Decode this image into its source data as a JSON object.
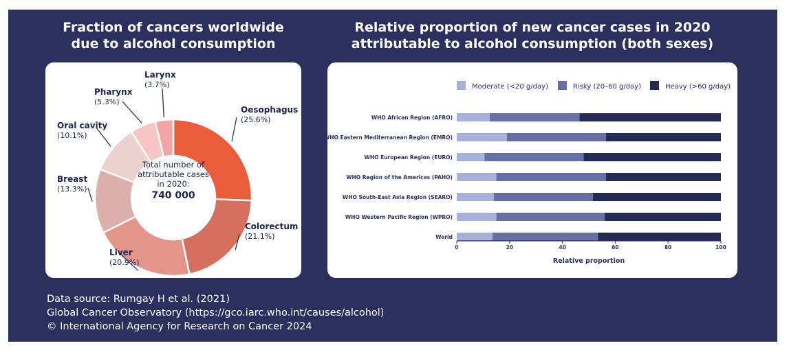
{
  "left_title": [
    "Fraction of cancers worldwide",
    "due to alcohol consumption"
  ],
  "right_title": [
    "Relative proportion of new cancer cases in 2020",
    "attributable to alcohol consumption (both sexes)"
  ],
  "source_lines": [
    "Data source: Rumgay H et al. (2021)",
    "Global Cancer Observatory (https://gco.iarc.who.int/causes/alcohol)",
    "© International Agency for Research on Cancer 2024"
  ],
  "colors": {
    "background": "#2c2f5e",
    "moderate": "#a7b0d8",
    "risky": "#666ea6",
    "heavy": "#252a54"
  },
  "chart_data": [
    {
      "type": "pie",
      "title": "Fraction of cancers worldwide due to alcohol consumption",
      "center_text": [
        "Total number of",
        "attributable cases",
        "in 2020:"
      ],
      "center_value": "740 000",
      "slices": [
        {
          "name": "Oesophagus",
          "label": "(25.6%)",
          "value": 25.6,
          "color": "#e95c3c"
        },
        {
          "name": "Colorectum",
          "label": "(21.1%)",
          "value": 21.1,
          "color": "#d5705f"
        },
        {
          "name": "Liver",
          "label": "(20.9%)",
          "value": 20.9,
          "color": "#e4958a"
        },
        {
          "name": "Breast",
          "label": "(13.3%)",
          "value": 13.3,
          "color": "#dcb0aa"
        },
        {
          "name": "Oral cavity",
          "label": "(10.1%)",
          "value": 10.1,
          "color": "#ecd2cf"
        },
        {
          "name": "Pharynx",
          "label": "(5.3%)",
          "value": 5.3,
          "color": "#f8c4c4"
        },
        {
          "name": "Larynx",
          "label": "(3.7%)",
          "value": 3.7,
          "color": "#f2a4a4"
        }
      ]
    },
    {
      "type": "bar",
      "orientation": "horizontal",
      "stacked": true,
      "title": "Relative proportion of new cancer cases in 2020 attributable to alcohol consumption (both sexes)",
      "xlabel": "Relative proportion",
      "xlim": [
        0,
        100
      ],
      "xticks": [
        "0",
        "20",
        "40",
        "60",
        "80",
        "100"
      ],
      "legend_position": "top",
      "categories": [
        "WHO African Region (AFRO)",
        "WHO Eastern Mediterranean Region (EMRO)",
        "WHO European Region (EURO)",
        "WHO Region of the Americas (PAHO)",
        "WHO South-East Asia Region (SEARO)",
        "WHO Western Pacific Region (WPRO)",
        "World"
      ],
      "series": [
        {
          "name": "Moderate (<20 g/day)",
          "color": "#a7b0d8",
          "values": [
            12.5,
            19,
            10.5,
            15,
            14,
            15,
            13.5
          ]
        },
        {
          "name": "Risky (20–60 g/day)",
          "color": "#666ea6",
          "values": [
            34,
            37.5,
            37.5,
            41.5,
            37.5,
            41,
            40
          ]
        },
        {
          "name": "Heavy (>60 g/day)",
          "color": "#252a54",
          "values": [
            53.5,
            43.5,
            52,
            43.5,
            48.5,
            44,
            46.5
          ]
        }
      ]
    }
  ]
}
